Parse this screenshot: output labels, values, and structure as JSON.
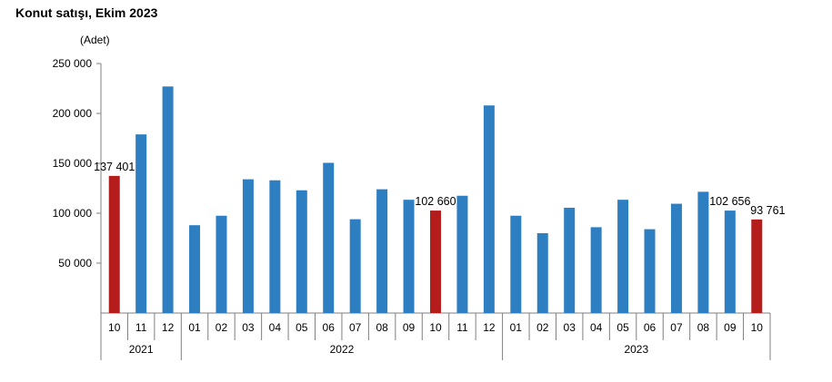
{
  "chart_data": {
    "type": "bar",
    "title": "Konut satışı, Ekim 2023",
    "unit_label": "(Adet)",
    "ylim": [
      0,
      250000
    ],
    "yticks": [
      50000,
      100000,
      150000,
      200000,
      250000
    ],
    "ytick_labels": [
      "50 000",
      "100 000",
      "150 000",
      "200 000",
      "250 000"
    ],
    "grid": false,
    "categories": [
      "10",
      "11",
      "12",
      "01",
      "02",
      "03",
      "04",
      "05",
      "06",
      "07",
      "08",
      "09",
      "10",
      "11",
      "12",
      "01",
      "02",
      "03",
      "04",
      "05",
      "06",
      "07",
      "08",
      "09",
      "10"
    ],
    "years": [
      {
        "label": "2021",
        "start": 0,
        "count": 3
      },
      {
        "label": "2022",
        "start": 3,
        "count": 12
      },
      {
        "label": "2023",
        "start": 15,
        "count": 10
      }
    ],
    "values": [
      137401,
      179000,
      227000,
      88000,
      97500,
      134000,
      133000,
      123000,
      150500,
      94000,
      124000,
      113500,
      102660,
      117500,
      208000,
      97500,
      80000,
      105500,
      86000,
      113500,
      84000,
      109500,
      121500,
      102656,
      93761
    ],
    "highlight_indices": [
      0,
      12,
      24
    ],
    "data_labels": [
      {
        "index": 0,
        "text": "137 401"
      },
      {
        "index": 12,
        "text": "102 660"
      },
      {
        "index": 23,
        "text": "102 656"
      },
      {
        "index": 24,
        "text": "93 761"
      }
    ],
    "colors": {
      "bar": "#2e7fc2",
      "highlight": "#b51c1c",
      "axis": "#7f7f7f"
    }
  }
}
